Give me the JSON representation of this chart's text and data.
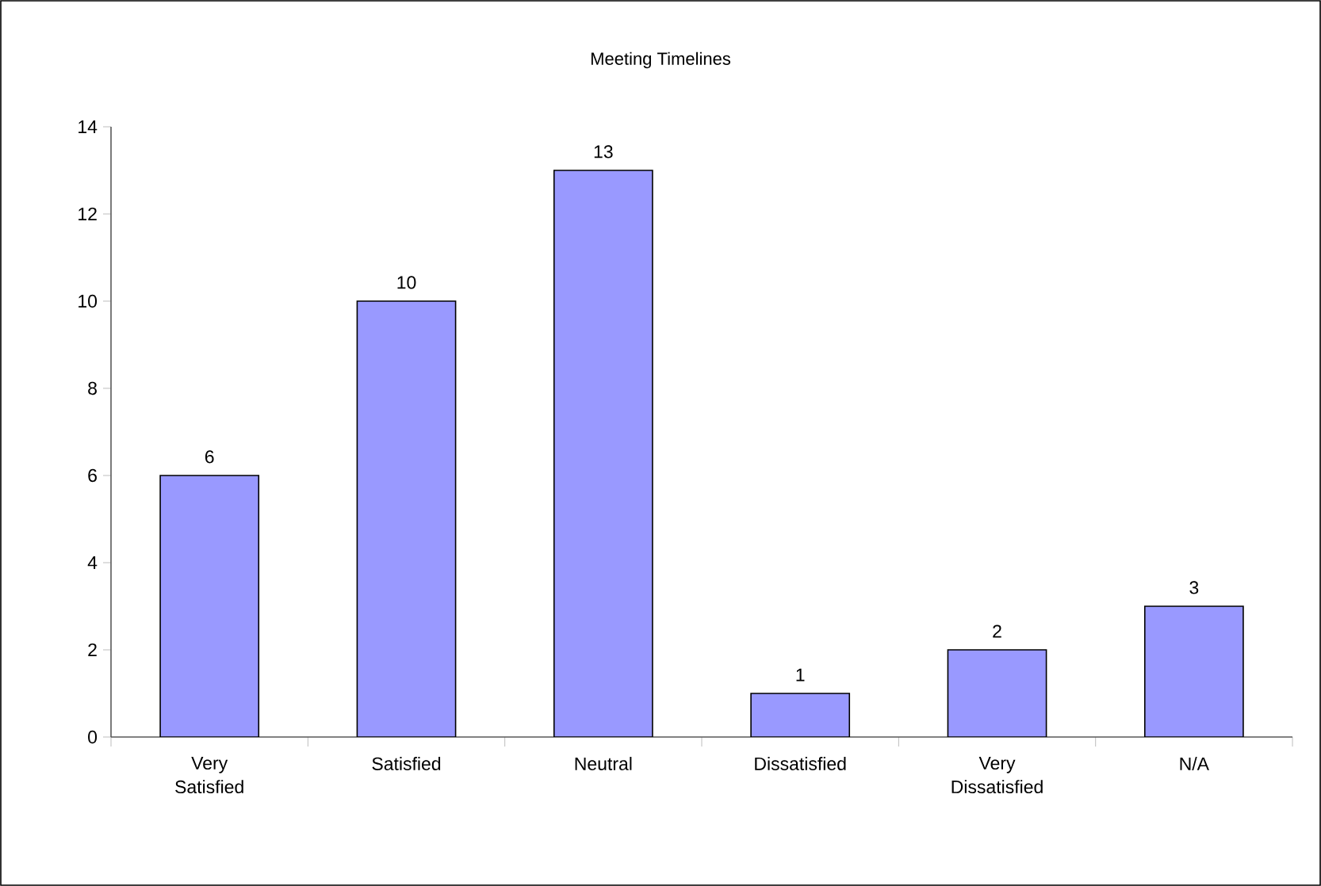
{
  "chart_data": {
    "type": "bar",
    "title": "Meeting Timelines",
    "categories": [
      "Very Satisfied",
      "Satisfied",
      "Neutral",
      "Dissatisfied",
      "Very Dissatisfied",
      "N/A"
    ],
    "values": [
      6,
      10,
      13,
      1,
      2,
      3
    ],
    "color": "#9999ff",
    "ylim": [
      0,
      14
    ],
    "yticks": [
      0,
      2,
      4,
      6,
      8,
      10,
      12,
      14
    ],
    "data_labels": true
  }
}
